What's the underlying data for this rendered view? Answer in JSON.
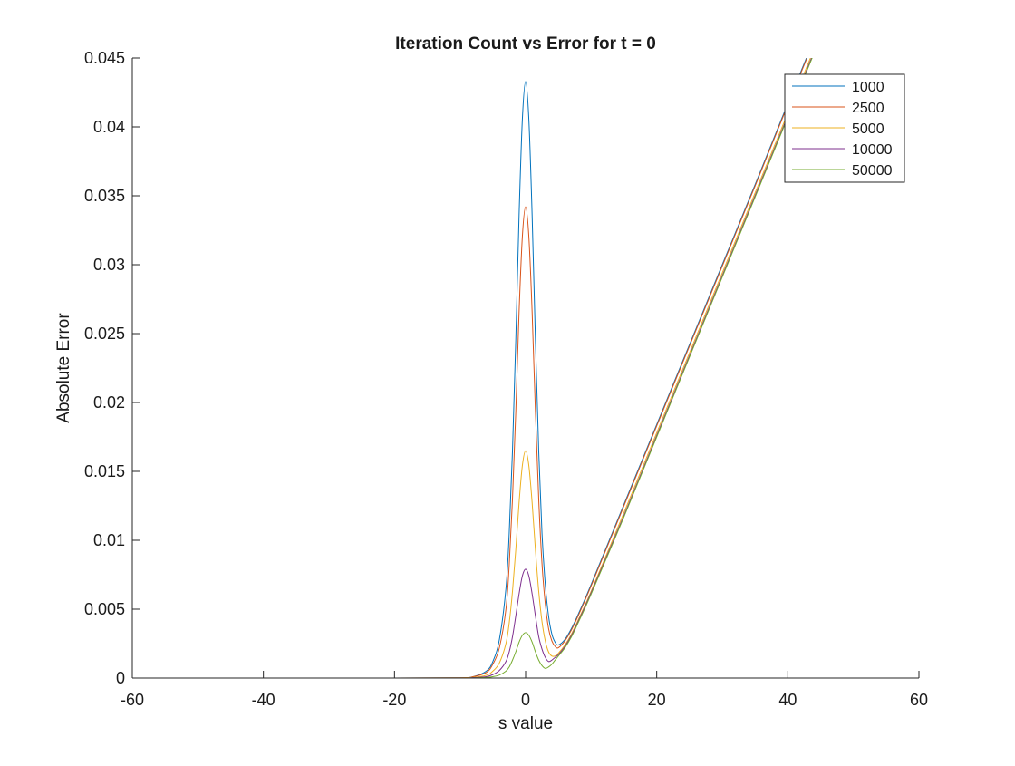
{
  "chart_data": {
    "type": "line",
    "title": "Iteration Count vs Error for t = 0",
    "xlabel": "s value",
    "ylabel": "Absolute Error",
    "xlim": [
      -60,
      60
    ],
    "ylim": [
      0,
      0.045
    ],
    "x_ticks": [
      -60,
      -40,
      -20,
      0,
      20,
      40,
      60
    ],
    "x_tick_labels": [
      "-60",
      "-40",
      "-20",
      "0",
      "20",
      "40",
      "60"
    ],
    "y_ticks": [
      0,
      0.005,
      0.01,
      0.015,
      0.02,
      0.025,
      0.03,
      0.035,
      0.04,
      0.045
    ],
    "y_tick_labels": [
      "0",
      "0.005",
      "0.01",
      "0.015",
      "0.02",
      "0.025",
      "0.03",
      "0.035",
      "0.04",
      "0.045"
    ],
    "grid": false,
    "legend_position": "top-right",
    "series": [
      {
        "name": "1000",
        "color": "#0072BD",
        "x": [
          -50,
          -20,
          -10,
          -8,
          -6,
          -5,
          -4,
          -3,
          -2.5,
          -2,
          -1.5,
          -1,
          -0.5,
          0,
          0.5,
          1,
          1.5,
          2,
          2.5,
          3,
          3.5,
          4,
          4.5,
          5,
          6,
          7,
          8,
          10,
          15,
          20,
          25,
          30,
          35,
          40,
          45
        ],
        "y": [
          0,
          0,
          2e-05,
          0.0001,
          0.0005,
          0.0012,
          0.0028,
          0.0065,
          0.0105,
          0.0165,
          0.0245,
          0.0335,
          0.0405,
          0.0433,
          0.0405,
          0.0335,
          0.0245,
          0.0165,
          0.0105,
          0.0068,
          0.0045,
          0.0032,
          0.0026,
          0.0024,
          0.0028,
          0.0036,
          0.0046,
          0.0068,
          0.0126,
          0.0184,
          0.0242,
          0.03,
          0.0358,
          0.0417,
          0.0475
        ]
      },
      {
        "name": "2500",
        "color": "#D95319",
        "x": [
          -50,
          -20,
          -10,
          -8,
          -6,
          -5,
          -4,
          -3,
          -2.5,
          -2,
          -1.5,
          -1,
          -0.5,
          0,
          0.5,
          1,
          1.5,
          2,
          2.5,
          3,
          3.5,
          4,
          4.5,
          5,
          6,
          7,
          8,
          10,
          15,
          20,
          25,
          30,
          35,
          40,
          45
        ],
        "y": [
          0,
          0,
          2e-05,
          0.0001,
          0.0004,
          0.001,
          0.0022,
          0.005,
          0.0082,
          0.013,
          0.0193,
          0.0265,
          0.032,
          0.0342,
          0.032,
          0.0265,
          0.0193,
          0.013,
          0.0083,
          0.0054,
          0.0036,
          0.0027,
          0.0023,
          0.0022,
          0.0027,
          0.0035,
          0.0045,
          0.0067,
          0.0125,
          0.0183,
          0.0241,
          0.0299,
          0.0357,
          0.0416,
          0.0474
        ]
      },
      {
        "name": "5000",
        "color": "#EDB120",
        "x": [
          -50,
          -20,
          -10,
          -8,
          -6,
          -5,
          -4,
          -3,
          -2.5,
          -2,
          -1.5,
          -1,
          -0.5,
          0,
          0.5,
          1,
          1.5,
          2,
          2.5,
          3,
          3.5,
          4,
          4.5,
          5,
          6,
          7,
          8,
          10,
          15,
          20,
          25,
          30,
          35,
          40,
          45
        ],
        "y": [
          0,
          0,
          1e-05,
          5e-05,
          0.0002,
          0.0005,
          0.0011,
          0.0025,
          0.004,
          0.0063,
          0.0093,
          0.0127,
          0.0154,
          0.0165,
          0.0154,
          0.0127,
          0.0093,
          0.0063,
          0.0041,
          0.0027,
          0.0019,
          0.0016,
          0.0016,
          0.0018,
          0.0024,
          0.0032,
          0.0042,
          0.0063,
          0.012,
          0.0178,
          0.0236,
          0.0294,
          0.0352,
          0.041,
          0.0468
        ]
      },
      {
        "name": "10000",
        "color": "#7E2F8E",
        "x": [
          -50,
          -20,
          -10,
          -8,
          -6,
          -5,
          -4,
          -3,
          -2.5,
          -2,
          -1.5,
          -1,
          -0.5,
          0,
          0.5,
          1,
          1.5,
          2,
          2.5,
          3,
          3.5,
          4,
          4.5,
          5,
          6,
          7,
          8,
          10,
          15,
          20,
          25,
          30,
          35,
          40,
          45
        ],
        "y": [
          0,
          0,
          0,
          3e-05,
          0.0001,
          0.00025,
          0.00055,
          0.0012,
          0.0019,
          0.003,
          0.0045,
          0.0061,
          0.0074,
          0.0079,
          0.0074,
          0.0061,
          0.0045,
          0.003,
          0.0021,
          0.0015,
          0.0012,
          0.0013,
          0.0015,
          0.0017,
          0.0023,
          0.0031,
          0.0041,
          0.0062,
          0.0118,
          0.0176,
          0.0234,
          0.0292,
          0.035,
          0.0408,
          0.0466
        ]
      },
      {
        "name": "50000",
        "color": "#77AC30",
        "x": [
          -50,
          -20,
          -10,
          -8,
          -6,
          -5,
          -4,
          -3,
          -2.5,
          -2,
          -1.5,
          -1,
          -0.5,
          0,
          0.5,
          1,
          1.5,
          2,
          2.5,
          3,
          3.5,
          4,
          4.5,
          5,
          6,
          7,
          8,
          10,
          15,
          20,
          25,
          30,
          35,
          40,
          45
        ],
        "y": [
          0,
          0,
          0,
          1e-05,
          4e-05,
          0.0001,
          0.00022,
          0.0005,
          0.0008,
          0.0013,
          0.0019,
          0.0026,
          0.0031,
          0.0033,
          0.0031,
          0.0026,
          0.0019,
          0.0013,
          0.0009,
          0.0007,
          0.0008,
          0.001,
          0.0013,
          0.0016,
          0.0022,
          0.003,
          0.004,
          0.0061,
          0.0117,
          0.0175,
          0.0233,
          0.0291,
          0.0349,
          0.0407,
          0.0465
        ]
      }
    ]
  }
}
